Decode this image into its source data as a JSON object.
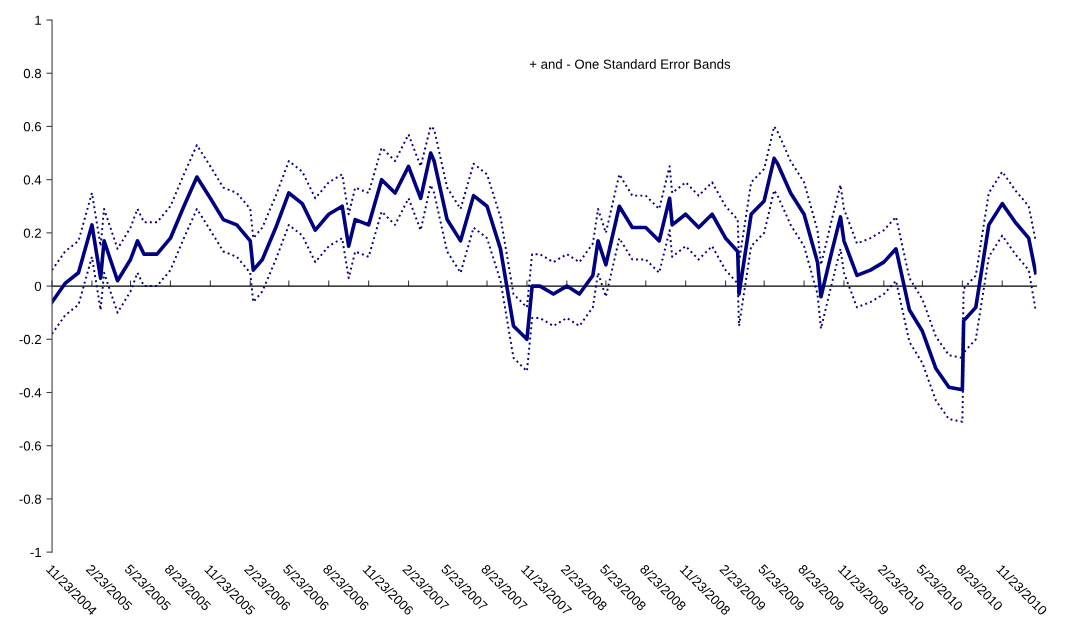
{
  "chart_data": {
    "type": "line",
    "annotations": [
      "+ and - One Standard Error Bands"
    ],
    "x": [
      "2004-11-23",
      "2004-12-23",
      "2005-01-23",
      "2005-02-23",
      "2005-03-15",
      "2005-03-23",
      "2005-04-23",
      "2005-05-23",
      "2005-06-08",
      "2005-06-23",
      "2005-07-23",
      "2005-08-23",
      "2005-09-23",
      "2005-10-23",
      "2005-11-23",
      "2005-12-23",
      "2006-01-23",
      "2006-02-23",
      "2006-03-02",
      "2006-03-23",
      "2006-04-23",
      "2006-05-23",
      "2006-06-23",
      "2006-07-23",
      "2006-08-23",
      "2006-09-23",
      "2006-10-08",
      "2006-10-23",
      "2006-11-23",
      "2006-12-23",
      "2007-01-23",
      "2007-02-23",
      "2007-03-23",
      "2007-04-15",
      "2007-04-23",
      "2007-05-23",
      "2007-06-23",
      "2007-07-23",
      "2007-08-23",
      "2007-09-23",
      "2007-10-23",
      "2007-11-23",
      "2007-12-05",
      "2007-12-23",
      "2008-01-23",
      "2008-02-23",
      "2008-03-23",
      "2008-04-23",
      "2008-05-05",
      "2008-05-23",
      "2008-06-23",
      "2008-07-23",
      "2008-08-23",
      "2008-09-23",
      "2008-10-17",
      "2008-10-23",
      "2008-11-23",
      "2008-12-23",
      "2009-01-23",
      "2009-02-23",
      "2009-03-23",
      "2009-03-26",
      "2009-04-23",
      "2009-05-23",
      "2009-06-15",
      "2009-06-23",
      "2009-07-23",
      "2009-08-23",
      "2009-09-23",
      "2009-10-01",
      "2009-10-23",
      "2009-11-15",
      "2009-11-23",
      "2009-12-23",
      "2010-01-23",
      "2010-02-23",
      "2010-03-23",
      "2010-04-23",
      "2010-05-23",
      "2010-06-23",
      "2010-07-23",
      "2010-08-23",
      "2010-08-26",
      "2010-09-23",
      "2010-10-23",
      "2010-11-23",
      "2010-12-23",
      "2011-01-23",
      "2011-02-08"
    ],
    "series": [
      {
        "color": "#000080",
        "line_style": "solid",
        "values": [
          -0.06,
          0.01,
          0.05,
          0.23,
          0.03,
          0.17,
          0.02,
          0.1,
          0.17,
          0.12,
          0.12,
          0.18,
          0.3,
          0.41,
          0.33,
          0.25,
          0.23,
          0.17,
          0.06,
          0.1,
          0.22,
          0.35,
          0.31,
          0.21,
          0.27,
          0.3,
          0.15,
          0.25,
          0.23,
          0.4,
          0.35,
          0.45,
          0.33,
          0.5,
          0.47,
          0.25,
          0.17,
          0.34,
          0.3,
          0.14,
          -0.15,
          -0.2,
          0.0,
          0.0,
          -0.03,
          0.0,
          -0.03,
          0.04,
          0.17,
          0.08,
          0.3,
          0.22,
          0.22,
          0.17,
          0.33,
          0.23,
          0.27,
          0.22,
          0.27,
          0.18,
          0.13,
          -0.03,
          0.27,
          0.32,
          0.48,
          0.46,
          0.35,
          0.27,
          0.09,
          -0.04,
          0.11,
          0.26,
          0.17,
          0.04,
          0.06,
          0.09,
          0.14,
          -0.09,
          -0.17,
          -0.31,
          -0.38,
          -0.39,
          -0.13,
          -0.08,
          0.23,
          0.31,
          0.24,
          0.18,
          0.05
        ]
      },
      {
        "color": "#000080",
        "line_style": "dotted",
        "values": [
          0.06,
          0.13,
          0.17,
          0.35,
          0.15,
          0.29,
          0.14,
          0.22,
          0.29,
          0.24,
          0.24,
          0.3,
          0.42,
          0.53,
          0.45,
          0.37,
          0.35,
          0.29,
          0.18,
          0.22,
          0.34,
          0.47,
          0.43,
          0.33,
          0.39,
          0.42,
          0.27,
          0.37,
          0.35,
          0.52,
          0.47,
          0.57,
          0.45,
          0.6,
          0.59,
          0.37,
          0.29,
          0.46,
          0.42,
          0.26,
          -0.03,
          -0.08,
          0.12,
          0.12,
          0.09,
          0.12,
          0.09,
          0.16,
          0.29,
          0.2,
          0.42,
          0.34,
          0.34,
          0.29,
          0.45,
          0.35,
          0.39,
          0.34,
          0.39,
          0.3,
          0.25,
          0.09,
          0.39,
          0.44,
          0.6,
          0.58,
          0.47,
          0.39,
          0.21,
          0.08,
          0.23,
          0.38,
          0.29,
          0.16,
          0.18,
          0.21,
          0.26,
          0.03,
          -0.05,
          -0.19,
          -0.26,
          -0.27,
          -0.01,
          0.04,
          0.35,
          0.43,
          0.36,
          0.3,
          0.17
        ]
      },
      {
        "color": "#000080",
        "line_style": "dotted",
        "values": [
          -0.18,
          -0.11,
          -0.07,
          0.11,
          -0.09,
          0.05,
          -0.1,
          -0.02,
          0.05,
          0.0,
          0.0,
          0.06,
          0.18,
          0.29,
          0.21,
          0.13,
          0.11,
          0.05,
          -0.06,
          -0.02,
          0.1,
          0.23,
          0.19,
          0.09,
          0.15,
          0.18,
          0.03,
          0.13,
          0.11,
          0.28,
          0.23,
          0.33,
          0.21,
          0.38,
          0.35,
          0.13,
          0.05,
          0.22,
          0.18,
          0.02,
          -0.27,
          -0.32,
          -0.12,
          -0.12,
          -0.15,
          -0.12,
          -0.15,
          -0.08,
          0.05,
          -0.04,
          0.18,
          0.1,
          0.1,
          0.05,
          0.21,
          0.11,
          0.15,
          0.1,
          0.15,
          0.06,
          0.01,
          -0.15,
          0.15,
          0.2,
          0.36,
          0.34,
          0.23,
          0.15,
          -0.03,
          -0.16,
          -0.01,
          0.14,
          0.05,
          -0.08,
          -0.06,
          -0.03,
          0.02,
          -0.21,
          -0.29,
          -0.43,
          -0.5,
          -0.51,
          -0.25,
          -0.2,
          0.11,
          0.19,
          0.12,
          0.06,
          -0.09
        ]
      }
    ],
    "xlim": [
      "2004-11-23",
      "2011-02-10"
    ],
    "ylim": [
      -1,
      1
    ],
    "yticks": [
      -1,
      -0.8,
      -0.6,
      -0.4,
      -0.2,
      0,
      0.2,
      0.4,
      0.6,
      0.8,
      1
    ],
    "xticks": [
      {
        "value": "2004-11-23",
        "label": "11/23/2004"
      },
      {
        "value": "2005-02-23",
        "label": "2/23/2005"
      },
      {
        "value": "2005-05-23",
        "label": "5/23/2005"
      },
      {
        "value": "2005-08-23",
        "label": "8/23/2005"
      },
      {
        "value": "2005-11-23",
        "label": "11/23/2005"
      },
      {
        "value": "2006-02-23",
        "label": "2/23/2006"
      },
      {
        "value": "2006-05-23",
        "label": "5/23/2006"
      },
      {
        "value": "2006-08-23",
        "label": "8/23/2006"
      },
      {
        "value": "2006-11-23",
        "label": "11/23/2006"
      },
      {
        "value": "2007-02-23",
        "label": "2/23/2007"
      },
      {
        "value": "2007-05-23",
        "label": "5/23/2007"
      },
      {
        "value": "2007-08-23",
        "label": "8/23/2007"
      },
      {
        "value": "2007-11-23",
        "label": "11/23/2007"
      },
      {
        "value": "2008-02-23",
        "label": "2/23/2008"
      },
      {
        "value": "2008-05-23",
        "label": "5/23/2008"
      },
      {
        "value": "2008-08-23",
        "label": "8/23/2008"
      },
      {
        "value": "2008-11-23",
        "label": "11/23/2008"
      },
      {
        "value": "2009-02-23",
        "label": "2/23/2009"
      },
      {
        "value": "2009-05-23",
        "label": "5/23/2009"
      },
      {
        "value": "2009-08-23",
        "label": "8/23/2009"
      },
      {
        "value": "2009-11-23",
        "label": "11/23/2009"
      },
      {
        "value": "2010-02-23",
        "label": "2/23/2010"
      },
      {
        "value": "2010-05-23",
        "label": "5/23/2010"
      },
      {
        "value": "2010-08-23",
        "label": "8/23/2010"
      },
      {
        "value": "2010-11-23",
        "label": "11/23/2010"
      }
    ],
    "legend": false
  }
}
